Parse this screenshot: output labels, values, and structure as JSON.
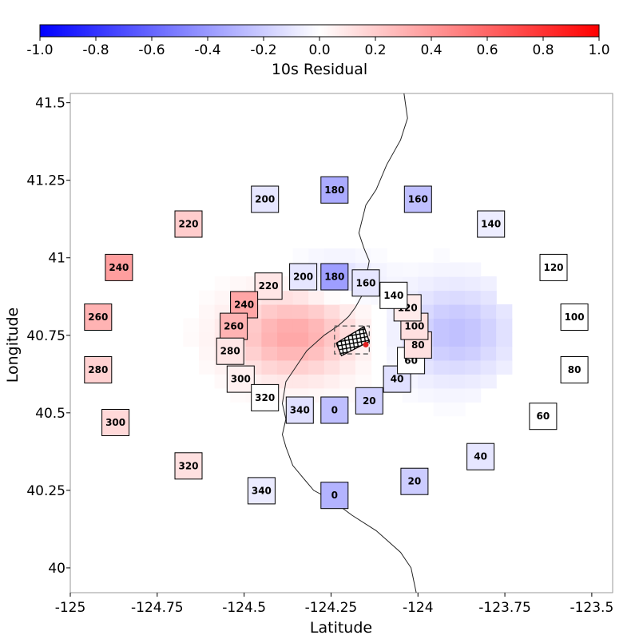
{
  "chart_data": {
    "type": "heatmap",
    "xlabel": "Latitude",
    "ylabel": "Longitude",
    "xlim": [
      -125.0,
      -123.44
    ],
    "ylim": [
      39.92,
      41.53
    ],
    "x_ticks": [
      -125,
      -124.75,
      -124.5,
      -124.25,
      -124,
      -123.75,
      -123.5
    ],
    "x_tick_labels": [
      "-125",
      "-124.75",
      "-124.5",
      "-124.25",
      "-124",
      "-123.75",
      "-123.5"
    ],
    "y_ticks": [
      40,
      40.25,
      40.5,
      40.75,
      41,
      41.25,
      41.5
    ],
    "y_tick_labels": [
      "40",
      "40.25",
      "40.5",
      "40.75",
      "41",
      "41.25",
      "41.5"
    ],
    "colorbar": {
      "label": "10s Residual",
      "range": [
        -1.0,
        1.0
      ],
      "ticks": [
        -1.0,
        -0.8,
        -0.6,
        -0.4,
        -0.2,
        0.0,
        0.2,
        0.4,
        0.6,
        0.8,
        1.0
      ],
      "tick_labels": [
        "-1.0",
        "-0.8",
        "-0.6",
        "-0.4",
        "-0.2",
        "0.0",
        "0.2",
        "0.4",
        "0.6",
        "0.8",
        "1.0"
      ],
      "colors": [
        "#0000ff",
        "#ffffff",
        "#ff0000"
      ]
    },
    "stations_outer": [
      {
        "label": "0",
        "lon": -124.24,
        "lat": 40.235,
        "value": -0.3
      },
      {
        "label": "20",
        "lon": -124.01,
        "lat": 40.28,
        "value": -0.2
      },
      {
        "label": "40",
        "lon": -123.82,
        "lat": 40.36,
        "value": -0.1
      },
      {
        "label": "60",
        "lon": -123.64,
        "lat": 40.49,
        "value": 0.0
      },
      {
        "label": "80",
        "lon": -123.55,
        "lat": 40.64,
        "value": 0.0
      },
      {
        "label": "100",
        "lon": -123.55,
        "lat": 40.81,
        "value": 0.0
      },
      {
        "label": "120",
        "lon": -123.61,
        "lat": 40.97,
        "value": 0.0
      },
      {
        "label": "140",
        "lon": -123.79,
        "lat": 41.11,
        "value": -0.07
      },
      {
        "label": "160",
        "lon": -124.0,
        "lat": 41.19,
        "value": -0.25
      },
      {
        "label": "180",
        "lon": -124.24,
        "lat": 41.22,
        "value": -0.33
      },
      {
        "label": "200",
        "lon": -124.44,
        "lat": 41.19,
        "value": -0.1
      },
      {
        "label": "220",
        "lon": -124.66,
        "lat": 41.11,
        "value": 0.2
      },
      {
        "label": "240",
        "lon": -124.86,
        "lat": 40.97,
        "value": 0.38
      },
      {
        "label": "260",
        "lon": -124.92,
        "lat": 40.81,
        "value": 0.3
      },
      {
        "label": "280",
        "lon": -124.92,
        "lat": 40.64,
        "value": 0.18
      },
      {
        "label": "300",
        "lon": -124.87,
        "lat": 40.47,
        "value": 0.15
      },
      {
        "label": "320",
        "lon": -124.66,
        "lat": 40.33,
        "value": 0.12
      },
      {
        "label": "340",
        "lon": -124.45,
        "lat": 40.25,
        "value": -0.08
      }
    ],
    "stations_inner": [
      {
        "label": "0",
        "lon": -124.24,
        "lat": 40.51,
        "value": -0.25
      },
      {
        "label": "20",
        "lon": -124.14,
        "lat": 40.54,
        "value": -0.18
      },
      {
        "label": "40",
        "lon": -124.06,
        "lat": 40.61,
        "value": -0.12
      },
      {
        "label": "60",
        "lon": -124.02,
        "lat": 40.67,
        "value": 0.0
      },
      {
        "label": "80",
        "lon": -124.0,
        "lat": 40.72,
        "value": 0.12
      },
      {
        "label": "100",
        "lon": -124.01,
        "lat": 40.78,
        "value": 0.12
      },
      {
        "label": "120",
        "lon": -124.03,
        "lat": 40.84,
        "value": 0.08
      },
      {
        "label": "140",
        "lon": -124.07,
        "lat": 40.88,
        "value": 0.0
      },
      {
        "label": "160",
        "lon": -124.15,
        "lat": 40.92,
        "value": -0.1
      },
      {
        "label": "180",
        "lon": -124.24,
        "lat": 40.94,
        "value": -0.38
      },
      {
        "label": "200",
        "lon": -124.33,
        "lat": 40.94,
        "value": -0.1
      },
      {
        "label": "220",
        "lon": -124.43,
        "lat": 40.91,
        "value": 0.1
      },
      {
        "label": "240",
        "lon": -124.5,
        "lat": 40.85,
        "value": 0.35
      },
      {
        "label": "260",
        "lon": -124.53,
        "lat": 40.78,
        "value": 0.3
      },
      {
        "label": "280",
        "lon": -124.54,
        "lat": 40.7,
        "value": 0.1
      },
      {
        "label": "300",
        "lon": -124.51,
        "lat": 40.61,
        "value": 0.06
      },
      {
        "label": "320",
        "lon": -124.44,
        "lat": 40.55,
        "value": 0.0
      },
      {
        "label": "340",
        "lon": -124.34,
        "lat": 40.51,
        "value": -0.12
      }
    ],
    "coastline": [
      [
        -124.04,
        41.53
      ],
      [
        -124.03,
        41.45
      ],
      [
        -124.05,
        41.38
      ],
      [
        -124.09,
        41.3
      ],
      [
        -124.12,
        41.22
      ],
      [
        -124.15,
        41.17
      ],
      [
        -124.17,
        41.08
      ],
      [
        -124.155,
        41.03
      ],
      [
        -124.14,
        40.99
      ],
      [
        -124.15,
        40.93
      ],
      [
        -124.16,
        40.88
      ],
      [
        -124.18,
        40.84
      ],
      [
        -124.2,
        40.81
      ],
      [
        -124.23,
        40.78
      ],
      [
        -124.27,
        40.75
      ],
      [
        -124.32,
        40.7
      ],
      [
        -124.35,
        40.65
      ],
      [
        -124.38,
        40.6
      ],
      [
        -124.39,
        40.53
      ],
      [
        -124.38,
        40.48
      ],
      [
        -124.39,
        40.43
      ],
      [
        -124.38,
        40.39
      ],
      [
        -124.36,
        40.33
      ],
      [
        -124.33,
        40.29
      ],
      [
        -124.3,
        40.25
      ],
      [
        -124.25,
        40.22
      ],
      [
        -124.19,
        40.17
      ],
      [
        -124.12,
        40.12
      ],
      [
        -124.09,
        40.09
      ],
      [
        -124.05,
        40.05
      ],
      [
        -124.02,
        40.0
      ],
      [
        -124.005,
        39.92
      ]
    ],
    "fault_region": {
      "lon_min": -124.24,
      "lon_max": -124.14,
      "lat_min": 40.69,
      "lat_max": 40.78,
      "epicenter": {
        "lon": -124.15,
        "lat": 40.72
      }
    },
    "residual_field": {
      "description": "gridded 10s residual, positive west and negative east of the fault",
      "west_center": {
        "lon": -124.36,
        "lat": 40.75,
        "value": 0.35
      },
      "east_center": {
        "lon": -123.89,
        "lat": 40.76,
        "value": -0.25
      }
    }
  }
}
